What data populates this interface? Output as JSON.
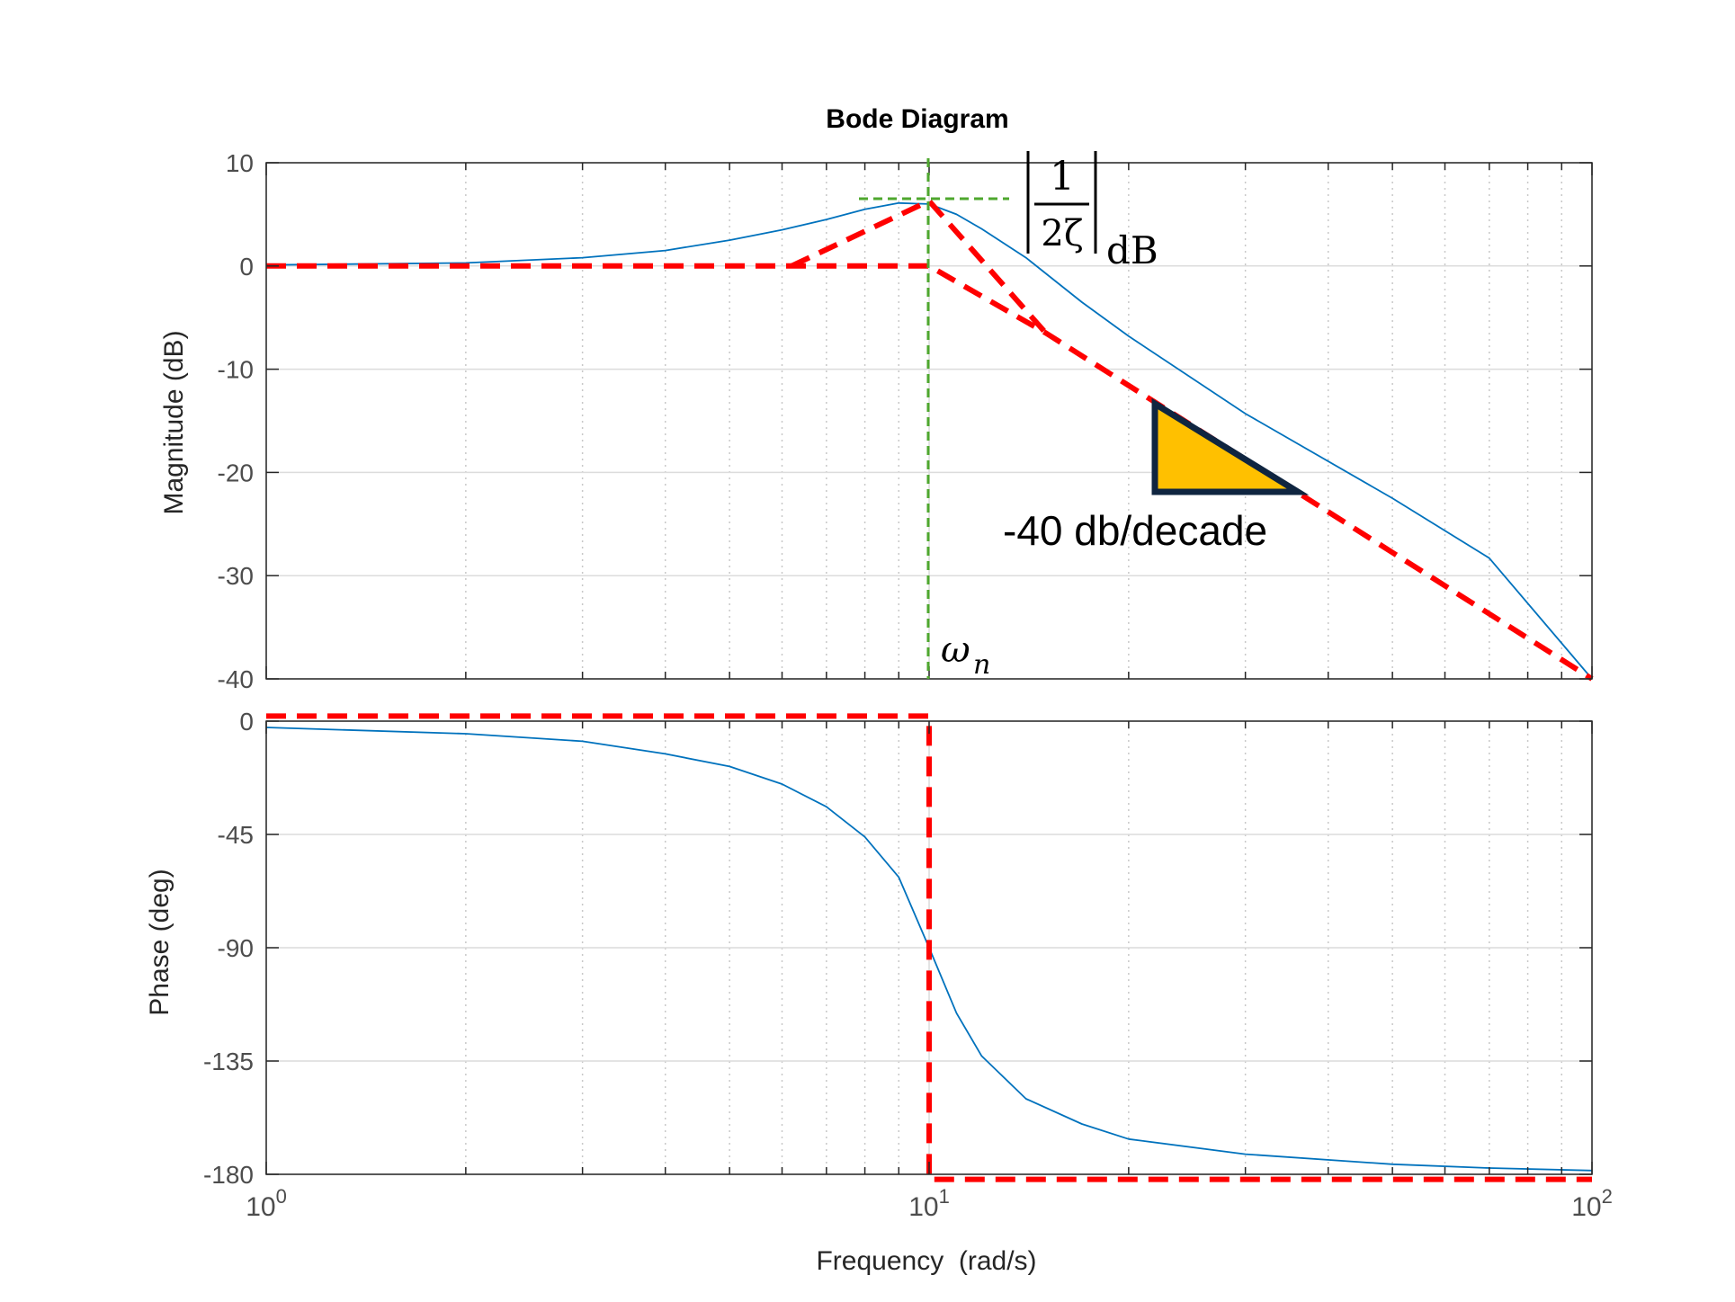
{
  "colors": {
    "axis": "#262626",
    "tick_text": "#4d4d4d",
    "grid_major": "#dcdcdc",
    "grid_minor": "#c8c8c8",
    "response": "#0072bd",
    "asymptote": "#ff0000",
    "guide": "#4ea72e",
    "triangle_fill": "#ffc000",
    "triangle_stroke": "#0f2540"
  },
  "chart_data": [
    {
      "type": "line",
      "title": "Bode Diagram",
      "xscale": "log",
      "xlim": [
        1,
        100
      ],
      "ylim": [
        -40,
        10
      ],
      "ylabel": "Magnitude (dB)",
      "yticks": [
        -40,
        -30,
        -20,
        -10,
        0,
        10
      ],
      "grid": true,
      "series": [
        {
          "style": "solid",
          "x": [
            1,
            2,
            3,
            4,
            5,
            6,
            7,
            8,
            9,
            10,
            11,
            12,
            14,
            17,
            20,
            30,
            50,
            70,
            100
          ],
          "y": [
            0.1,
            0.3,
            0.8,
            1.5,
            2.5,
            3.5,
            4.5,
            5.5,
            6.1,
            6.0,
            5.0,
            3.6,
            0.8,
            -3.5,
            -6.8,
            -14.3,
            -22.5,
            -28.3,
            -40.0
          ]
        },
        {
          "style": "dashed",
          "x": [
            1,
            10,
            15,
            100
          ],
          "y": [
            0,
            0,
            -6.5,
            -40
          ]
        },
        {
          "style": "dashed",
          "x": [
            6.2,
            10,
            15
          ],
          "y": [
            0,
            6.3,
            -6.5
          ]
        }
      ],
      "annotations": {
        "peak_label": {
          "numerator": "1",
          "denominator": "2ζ",
          "subscript": "dB"
        },
        "corner_label": {
          "symbol": "ω",
          "subscript": "n"
        },
        "slope_label": "-40 db/decade"
      }
    },
    {
      "type": "line",
      "xscale": "log",
      "xlim": [
        1,
        100
      ],
      "ylim": [
        -180,
        0
      ],
      "xlabel": "Frequency  (rad/s)",
      "ylabel": "Phase (deg)",
      "yticks": [
        -180,
        -135,
        -90,
        -45,
        0
      ],
      "xticks": [
        {
          "value": 1,
          "base": "10",
          "exp": "0"
        },
        {
          "value": 10,
          "base": "10",
          "exp": "1"
        },
        {
          "value": 100,
          "base": "10",
          "exp": "2"
        }
      ],
      "grid": true,
      "series": [
        {
          "style": "solid",
          "x": [
            1,
            2,
            3,
            4,
            5,
            6,
            7,
            8,
            9,
            10,
            11,
            12,
            14,
            17,
            20,
            30,
            50,
            70,
            100
          ],
          "y": [
            -2.5,
            -5,
            -8,
            -13,
            -18,
            -25,
            -34,
            -46,
            -62,
            -90,
            -116,
            -133,
            -150,
            -160,
            -166,
            -172,
            -176,
            -177.5,
            -178.5
          ]
        },
        {
          "style": "dashed",
          "x": [
            1,
            10,
            10,
            100
          ],
          "y": [
            2,
            2,
            -182,
            -182
          ]
        }
      ]
    }
  ]
}
